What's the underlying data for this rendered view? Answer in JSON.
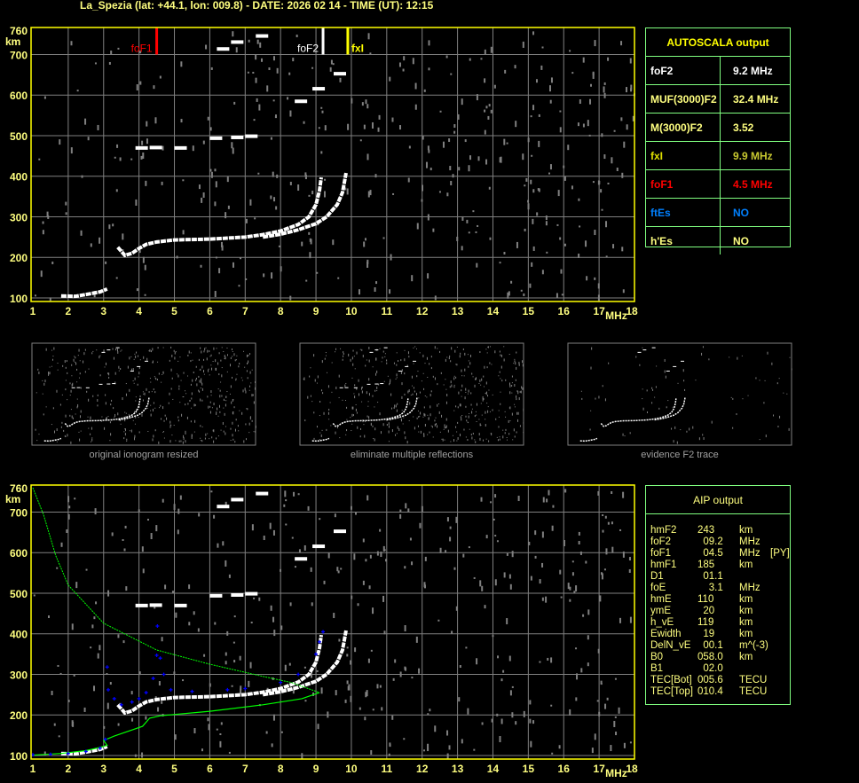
{
  "title": "La_Spezia (lat: +44.1, lon: 009.8) - DATE: 2026 02 14 - TIME (UT): 12:15",
  "autoscala": {
    "title": "AUTOSCALA output",
    "rows": [
      {
        "label": "foF2",
        "value": "9.2 MHz",
        "color": "#ffffff"
      },
      {
        "label": "MUF(3000)F2",
        "value": "32.4 MHz",
        "color": "#ffff80"
      },
      {
        "label": "M(3000)F2",
        "value": "3.52",
        "color": "#ffff80"
      },
      {
        "label": "fxI",
        "value": "9.9 MHz",
        "color": "#e0e000",
        "value_color": "#c8c830"
      },
      {
        "label": "foF1",
        "value": "4.5 MHz",
        "color": "#ff0000"
      },
      {
        "label": "ftEs",
        "value": "NO",
        "color": "#0080ff"
      },
      {
        "label": "h'Es",
        "value": "NO",
        "color": "#ffff80"
      }
    ]
  },
  "aip": {
    "title": "AIP output",
    "rows": [
      [
        "hmF2",
        "243",
        "km",
        ""
      ],
      [
        "foF2",
        "  09.2",
        "MHz",
        ""
      ],
      [
        "foF1",
        "  04.5",
        "MHz",
        "[PY]"
      ],
      [
        "hmF1",
        "185",
        "km",
        ""
      ],
      [
        "D1",
        "  01.1",
        "",
        ""
      ],
      [
        "foE",
        "    3.1",
        "MHz",
        ""
      ],
      [
        "hmE",
        "110",
        "km",
        ""
      ],
      [
        "ymE",
        "  20",
        "km",
        ""
      ],
      [
        "h_vE",
        "119",
        "km",
        ""
      ],
      [
        "Ewidth",
        "  19",
        "km",
        ""
      ],
      [
        "DelN_vE",
        "  00.1",
        "m^(-3)",
        ""
      ],
      [
        "B0",
        "058.0",
        "km",
        ""
      ],
      [
        "B1",
        "  02.0",
        "",
        ""
      ],
      [
        "TEC[Bot]",
        "005.6",
        "TECU",
        ""
      ],
      [
        "TEC[Top]",
        "010.4",
        "TECU",
        ""
      ]
    ]
  },
  "thumbnails": [
    {
      "caption": "original ionogram resized"
    },
    {
      "caption": "eliminate multiple reflections"
    },
    {
      "caption": "evidence F2 trace"
    }
  ],
  "colors": {
    "axis": "#ffff00",
    "label": "#ffff80",
    "grid": "#808080",
    "trace": "#ffffff",
    "noise": "#808080",
    "profile": "#00ff00",
    "aip_points": "#0000ff",
    "panel_border": "#80ff80"
  },
  "chart_data": {
    "type": "scatter",
    "xlabel": "MHz",
    "ylabel": "km",
    "xlim": [
      1,
      18
    ],
    "ylim": [
      100,
      760
    ],
    "x_ticks": [
      "1",
      "2",
      "3",
      "4",
      "5",
      "6",
      "7",
      "8",
      "9",
      "10",
      "11",
      "12",
      "13",
      "14",
      "15",
      "16",
      "17",
      "18"
    ],
    "y_ticks": [
      "760",
      "700",
      "600",
      "500",
      "400",
      "300",
      "200",
      "100"
    ],
    "grid": true,
    "markers": [
      {
        "label": "foF1",
        "freq": 4.5,
        "color": "#ff0000"
      },
      {
        "label": "foF2",
        "freq": 9.2,
        "color": "#ffffff"
      },
      {
        "label": "fxI",
        "freq": 9.9,
        "color": "#ffff00"
      }
    ],
    "traces": {
      "E": [
        [
          1.8,
          105
        ],
        [
          2.2,
          104
        ],
        [
          2.6,
          110
        ],
        [
          2.9,
          115
        ],
        [
          3.1,
          122
        ]
      ],
      "F_ordinary": [
        [
          3.4,
          225
        ],
        [
          3.6,
          205
        ],
        [
          3.8,
          210
        ],
        [
          4.0,
          222
        ],
        [
          4.2,
          232
        ],
        [
          4.5,
          238
        ],
        [
          5.0,
          243
        ],
        [
          6.0,
          245
        ],
        [
          7.0,
          250
        ],
        [
          7.5,
          256
        ],
        [
          8.0,
          265
        ],
        [
          8.5,
          281
        ],
        [
          8.8,
          300
        ],
        [
          9.0,
          330
        ],
        [
          9.1,
          365
        ],
        [
          9.15,
          397
        ]
      ],
      "F_extraordinary": [
        [
          7.5,
          250
        ],
        [
          8.0,
          257
        ],
        [
          8.5,
          268
        ],
        [
          9.0,
          283
        ],
        [
          9.3,
          300
        ],
        [
          9.6,
          330
        ],
        [
          9.75,
          360
        ],
        [
          9.85,
          408
        ]
      ],
      "F_second_hop": [
        [
          3.9,
          474
        ],
        [
          4.3,
          475
        ],
        [
          5.0,
          474
        ],
        [
          6.0,
          498
        ],
        [
          6.6,
          500
        ],
        [
          7.0,
          503
        ]
      ],
      "F_high": [
        [
          6.2,
          718
        ],
        [
          6.6,
          735
        ],
        [
          7.3,
          750
        ],
        [
          8.4,
          589
        ],
        [
          8.9,
          620
        ],
        [
          9.5,
          657
        ]
      ]
    },
    "profile": {
      "upper": [
        [
          1.0,
          760
        ],
        [
          1.3,
          694
        ],
        [
          1.65,
          592
        ],
        [
          2.0,
          520
        ],
        [
          3.0,
          426
        ],
        [
          4.5,
          360
        ],
        [
          6.0,
          325
        ],
        [
          7.5,
          295
        ],
        [
          8.3,
          280
        ],
        [
          9.1,
          255
        ]
      ],
      "lower": [
        [
          9.1,
          255
        ],
        [
          8.6,
          240
        ],
        [
          7.5,
          225
        ],
        [
          6.0,
          209
        ],
        [
          4.6,
          198
        ],
        [
          4.3,
          192
        ],
        [
          4.1,
          172
        ],
        [
          3.3,
          148
        ],
        [
          3.0,
          137
        ],
        [
          3.1,
          125
        ],
        [
          2.9,
          120
        ],
        [
          2.5,
          112
        ],
        [
          1.8,
          105
        ],
        [
          1.0,
          101
        ]
      ]
    },
    "aip_points": [
      [
        1.0,
        102
      ],
      [
        1.5,
        103
      ],
      [
        2.0,
        105
      ],
      [
        2.5,
        110
      ],
      [
        2.9,
        118
      ],
      [
        3.05,
        140
      ],
      [
        3.1,
        318
      ],
      [
        3.13,
        262
      ],
      [
        3.3,
        240
      ],
      [
        3.5,
        225
      ],
      [
        3.8,
        232
      ],
      [
        4.0,
        240
      ],
      [
        4.2,
        255
      ],
      [
        4.4,
        290
      ],
      [
        4.5,
        347
      ],
      [
        4.52,
        419
      ],
      [
        4.6,
        340
      ],
      [
        4.7,
        300
      ],
      [
        4.9,
        262
      ],
      [
        5.5,
        258
      ],
      [
        6.5,
        262
      ],
      [
        7.0,
        265
      ],
      [
        8.0,
        280
      ],
      [
        8.5,
        300
      ],
      [
        9.0,
        350
      ],
      [
        9.1,
        380
      ],
      [
        9.2,
        405
      ]
    ]
  }
}
